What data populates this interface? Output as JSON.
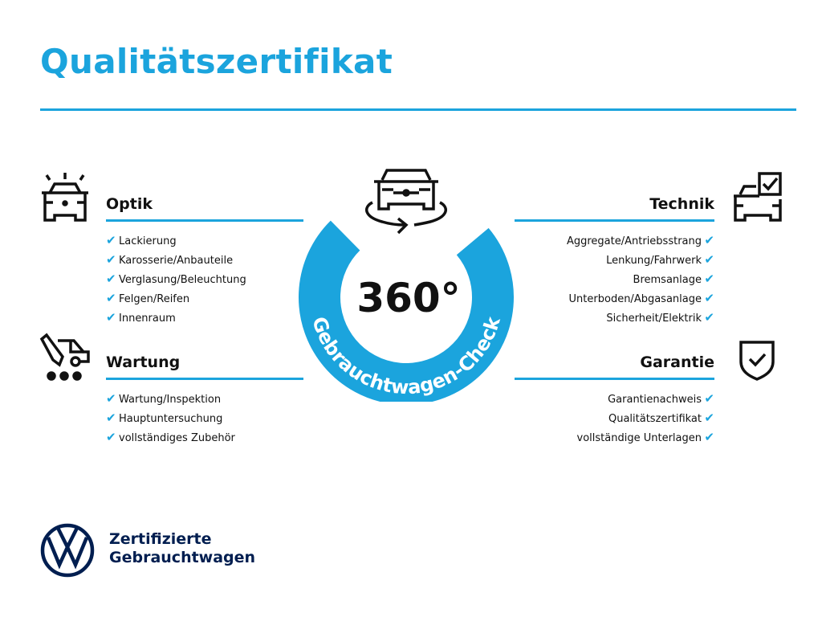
{
  "title": "Qualitätszertifikat",
  "center": {
    "degrees": "360°",
    "ring_label": "Gebrauchtwagen-Check"
  },
  "colors": {
    "accent": "#1ba4dd",
    "brand": "#001e50"
  },
  "sections": {
    "optik": {
      "heading": "Optik",
      "icon": "car-lights-icon",
      "items": [
        "Lackierung",
        "Karosserie/Anbauteile",
        "Verglasung/Beleuchtung",
        "Felgen/Reifen",
        "Innenraum"
      ]
    },
    "wartung": {
      "heading": "Wartung",
      "icon": "service-car-icon",
      "items": [
        "Wartung/Inspektion",
        "Hauptuntersuchung",
        "vollständiges Zubehör"
      ]
    },
    "technik": {
      "heading": "Technik",
      "icon": "car-checkbox-icon",
      "items": [
        "Aggregate/Antriebsstrang",
        "Lenkung/Fahrwerk",
        "Bremsanlage",
        "Unterboden/Abgasanlage",
        "Sicherheit/Elektrik"
      ]
    },
    "garantie": {
      "heading": "Garantie",
      "icon": "shield-check-icon",
      "items": [
        "Garantienachweis",
        "Qualitätszertifikat",
        "vollständige Unterlagen"
      ]
    }
  },
  "check_mark": "✔",
  "footer": {
    "line1": "Zertifizierte",
    "line2": "Gebrauchtwagen"
  }
}
